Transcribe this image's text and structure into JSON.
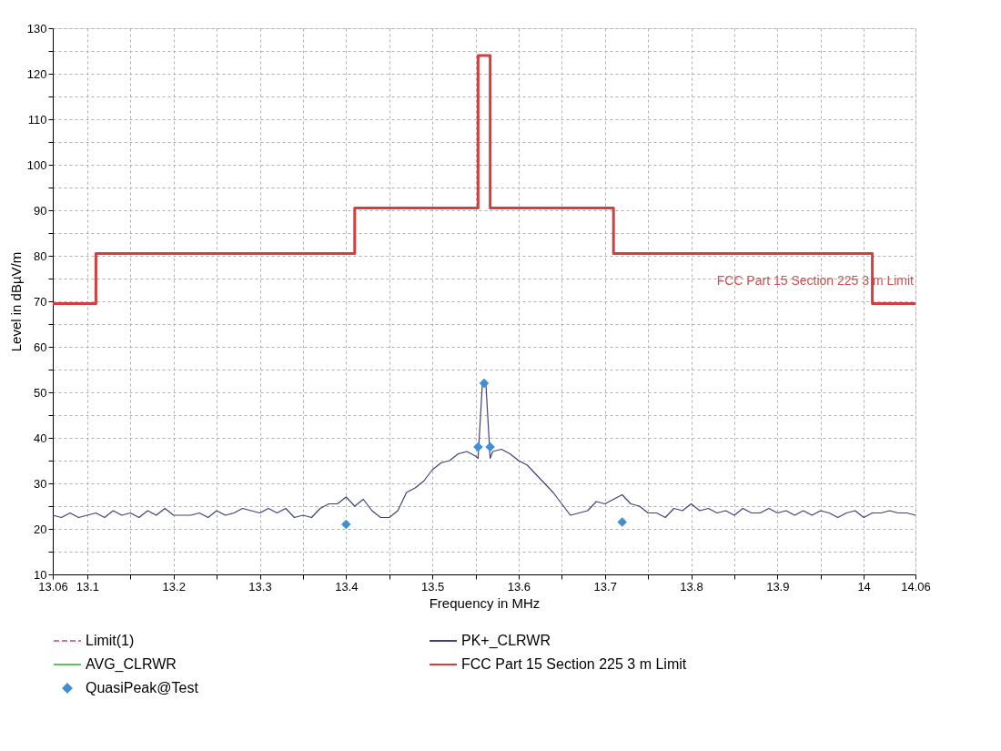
{
  "chart_data": {
    "type": "line",
    "xlabel": "Frequency in MHz",
    "ylabel": "Level in dBµV/m",
    "xlim": [
      13.06,
      14.06
    ],
    "ylim": [
      10,
      130
    ],
    "xticks": [
      13.06,
      13.1,
      {
        "value": 13.15,
        "label": null
      },
      13.2,
      {
        "value": 13.25,
        "label": null
      },
      13.3,
      {
        "value": 13.35,
        "label": null
      },
      13.4,
      {
        "value": 13.45,
        "label": null
      },
      13.5,
      {
        "value": 13.55,
        "label": null
      },
      13.6,
      {
        "value": 13.65,
        "label": null
      },
      13.7,
      {
        "value": 13.75,
        "label": null
      },
      13.8,
      {
        "value": 13.85,
        "label": null
      },
      13.9,
      {
        "value": 13.95,
        "label": null
      },
      14,
      14.06
    ],
    "yticks": [
      10,
      {
        "value": 15,
        "label": null
      },
      20,
      {
        "value": 25,
        "label": null
      },
      30,
      {
        "value": 35,
        "label": null
      },
      40,
      {
        "value": 45,
        "label": null
      },
      50,
      {
        "value": 55,
        "label": null
      },
      60,
      {
        "value": 65,
        "label": null
      },
      70,
      {
        "value": 75,
        "label": null
      },
      80,
      {
        "value": 85,
        "label": null
      },
      90,
      {
        "value": 95,
        "label": null
      },
      100,
      {
        "value": 105,
        "label": null
      },
      110,
      {
        "value": 115,
        "label": null
      },
      120,
      {
        "value": 125,
        "label": null
      },
      130
    ],
    "grid": true,
    "legend": "bottom",
    "annotations": [
      "FCC Part 15 Section 225 3 m Limit"
    ],
    "series": [
      {
        "name": "Limit(1)",
        "color": "#d070b0",
        "line_style": "dashed"
      },
      {
        "name": "PK+_CLRWR",
        "color": "#404080",
        "x": [
          13.06,
          13.07,
          13.08,
          13.09,
          13.1,
          13.11,
          13.12,
          13.13,
          13.14,
          13.15,
          13.16,
          13.17,
          13.18,
          13.19,
          13.2,
          13.21,
          13.22,
          13.23,
          13.24,
          13.25,
          13.26,
          13.27,
          13.28,
          13.29,
          13.3,
          13.31,
          13.32,
          13.33,
          13.34,
          13.35,
          13.36,
          13.37,
          13.38,
          13.39,
          13.4,
          13.41,
          13.42,
          13.43,
          13.44,
          13.45,
          13.46,
          13.47,
          13.48,
          13.49,
          13.5,
          13.51,
          13.52,
          13.53,
          13.54,
          13.55,
          13.553,
          13.558,
          13.562,
          13.567,
          13.57,
          13.58,
          13.59,
          13.6,
          13.61,
          13.62,
          13.63,
          13.64,
          13.65,
          13.66,
          13.67,
          13.68,
          13.69,
          13.7,
          13.71,
          13.72,
          13.73,
          13.74,
          13.75,
          13.76,
          13.77,
          13.78,
          13.79,
          13.8,
          13.81,
          13.82,
          13.83,
          13.84,
          13.85,
          13.86,
          13.87,
          13.88,
          13.89,
          13.9,
          13.91,
          13.92,
          13.93,
          13.94,
          13.95,
          13.96,
          13.97,
          13.98,
          13.99,
          14.0,
          14.01,
          14.02,
          14.03,
          14.04,
          14.05,
          14.06
        ],
        "values": [
          23,
          22.5,
          23.5,
          22.5,
          23,
          23.5,
          22.5,
          24,
          23,
          23.5,
          22.5,
          24,
          23,
          24.5,
          23,
          23,
          23,
          23.5,
          22.5,
          24,
          23,
          23.5,
          24.5,
          24,
          23.5,
          24.5,
          23.5,
          24.5,
          22.5,
          23,
          22.5,
          24.5,
          25.5,
          25.5,
          27,
          25,
          26.5,
          24,
          22.5,
          22.5,
          24,
          28,
          29,
          30.5,
          33,
          34.5,
          35,
          36.5,
          37,
          36,
          35.5,
          52,
          52,
          35.5,
          37,
          37.5,
          36.5,
          35,
          34,
          32,
          30,
          28,
          25.5,
          23,
          23.5,
          24,
          26,
          25.5,
          26.5,
          27.5,
          25.5,
          25,
          23.5,
          23.5,
          22.5,
          24.5,
          24,
          25.5,
          24,
          24.5,
          23.5,
          24,
          23,
          24.5,
          23.5,
          23.5,
          24.5,
          23.5,
          24,
          23,
          24,
          23,
          24,
          23.5,
          22.5,
          23.5,
          24,
          22.5,
          23.5,
          23.5,
          24,
          23.5,
          23.5,
          23
        ]
      },
      {
        "name": "AVG_CLRWR",
        "color": "#60c060"
      },
      {
        "name": "FCC Part 15 Section 225 3 m Limit",
        "type": "step",
        "color": "#d04040",
        "x": [
          13.06,
          13.11,
          13.41,
          13.553,
          13.567,
          13.71,
          14.01,
          14.06
        ],
        "values": [
          69.5,
          80.5,
          90.5,
          124,
          90.5,
          80.5,
          69.5,
          69.5
        ]
      },
      {
        "name": "QuasiPeak@Test",
        "type": "scatter",
        "color": "#3d8fd6",
        "marker": "diamond",
        "x": [
          13.4,
          13.553,
          13.56,
          13.567,
          13.72
        ],
        "values": [
          21,
          38,
          52,
          38,
          21.5
        ]
      }
    ]
  }
}
